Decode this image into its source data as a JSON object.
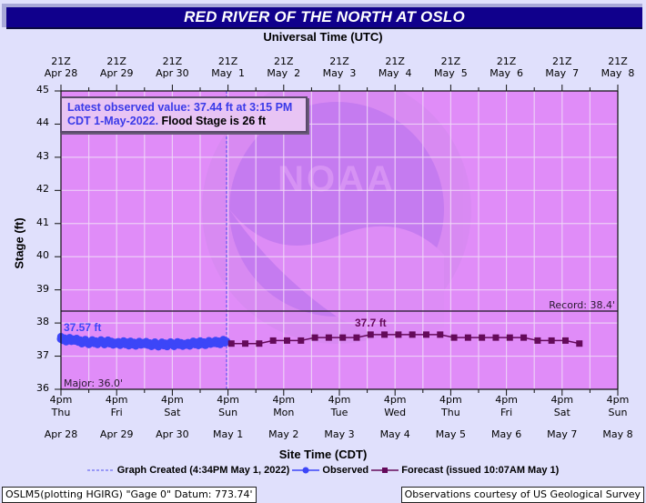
{
  "title": "RED RIVER OF THE NORTH AT OSLO",
  "top_axis_title": "Universal Time (UTC)",
  "bottom_axis_title": "Site Time (CDT)",
  "y_axis_title": "Stage (ft)",
  "top_ticks": [
    {
      "line1": "21Z",
      "line2": "Apr 28"
    },
    {
      "line1": "21Z",
      "line2": "Apr 29"
    },
    {
      "line1": "21Z",
      "line2": "Apr 30"
    },
    {
      "line1": "21Z",
      "line2": "May  1"
    },
    {
      "line1": "21Z",
      "line2": "May  2"
    },
    {
      "line1": "21Z",
      "line2": "May  3"
    },
    {
      "line1": "21Z",
      "line2": "May  4"
    },
    {
      "line1": "21Z",
      "line2": "May  5"
    },
    {
      "line1": "21Z",
      "line2": "May  6"
    },
    {
      "line1": "21Z",
      "line2": "May  7"
    },
    {
      "line1": "21Z",
      "line2": "May  8"
    }
  ],
  "bottom_ticks": [
    {
      "time": "4pm",
      "day": "Thu",
      "date": "Apr 28"
    },
    {
      "time": "4pm",
      "day": "Fri",
      "date": "Apr 29"
    },
    {
      "time": "4pm",
      "day": "Sat",
      "date": "Apr 30"
    },
    {
      "time": "4pm",
      "day": "Sun",
      "date": "May 1"
    },
    {
      "time": "4pm",
      "day": "Mon",
      "date": "May 2"
    },
    {
      "time": "4pm",
      "day": "Tue",
      "date": "May 3"
    },
    {
      "time": "4pm",
      "day": "Wed",
      "date": "May 4"
    },
    {
      "time": "4pm",
      "day": "Thu",
      "date": "May 5"
    },
    {
      "time": "4pm",
      "day": "Fri",
      "date": "May 6"
    },
    {
      "time": "4pm",
      "day": "Sat",
      "date": "May 7"
    },
    {
      "time": "4pm",
      "day": "Sun",
      "date": "May 8"
    }
  ],
  "y_ticks": [
    "45",
    "44",
    "43",
    "42",
    "41",
    "40",
    "39",
    "38",
    "37",
    "36"
  ],
  "latest_box": {
    "blue_text_1": "Latest observed value: 37.44 ft at 3:15 PM",
    "blue_text_2": "CDT 1-May-2022.",
    "black_text": " Flood Stage is 26 ft"
  },
  "annotations": {
    "observed_peak": "37.57 ft",
    "forecast_peak": "37.7 ft",
    "record": "Record: 38.4'",
    "major": "Major: 36.0'"
  },
  "legend": {
    "graph_created": "Graph Created (4:34PM May 1, 2022)",
    "observed": "Observed",
    "forecast": "Forecast (issued 10:07AM May 1)"
  },
  "footer": {
    "left": "OSLM5(plotting HGIRG) \"Gage 0\" Datum: 773.74'",
    "right": "Observations courtesy of US Geological Survey"
  },
  "colors": {
    "title_bg": "#10008c",
    "page_bg": "#e0e0fc",
    "plot_bg": "#e08cf8",
    "observed": "#3c46f8",
    "forecast": "#640a5a",
    "record_line": "#3c2846",
    "now_line": "#5050f0"
  },
  "chart_data": {
    "type": "line",
    "title": "RED RIVER OF THE NORTH AT OSLO",
    "xlabel": "Site Time (CDT)",
    "x2label": "Universal Time (UTC)",
    "ylabel": "Stage (ft)",
    "ylim": [
      36,
      45
    ],
    "xlim": [
      "Apr 28 4pm",
      "May 8 4pm"
    ],
    "grid": true,
    "legend_position": "bottom",
    "thresholds": {
      "record_ft": 38.4,
      "major_ft": 36.0,
      "flood_stage_ft": 26
    },
    "graph_created": "4:34PM May 1, 2022",
    "series": [
      {
        "name": "Observed",
        "x_days_from_apr28_4pm": [
          0,
          0.25,
          0.5,
          0.75,
          1.0,
          1.25,
          1.5,
          1.75,
          2.0,
          2.25,
          2.5,
          2.75,
          2.97
        ],
        "values": [
          37.52,
          37.47,
          37.42,
          37.42,
          37.4,
          37.38,
          37.37,
          37.35,
          37.36,
          37.37,
          37.39,
          37.4,
          37.44
        ],
        "peak_label": "37.57 ft",
        "latest": {
          "value": 37.44,
          "time": "3:15 PM CDT 1-May-2022"
        }
      },
      {
        "name": "Forecast (issued 10:07AM May 1)",
        "x_days_from_apr28_4pm": [
          3.06,
          3.31,
          3.56,
          3.81,
          4.06,
          4.31,
          4.56,
          4.81,
          5.06,
          5.31,
          5.56,
          5.81,
          6.06,
          6.31,
          6.56,
          6.81,
          7.06,
          7.31,
          7.56,
          7.81,
          8.06,
          8.31,
          8.56,
          8.81,
          9.06,
          9.31
        ],
        "values": [
          37.38,
          37.38,
          37.38,
          37.47,
          37.47,
          37.47,
          37.56,
          37.56,
          37.56,
          37.56,
          37.65,
          37.65,
          37.65,
          37.65,
          37.65,
          37.65,
          37.56,
          37.56,
          37.56,
          37.56,
          37.56,
          37.56,
          37.47,
          37.47,
          37.47,
          37.38
        ],
        "peak_label": "37.7 ft"
      }
    ]
  }
}
